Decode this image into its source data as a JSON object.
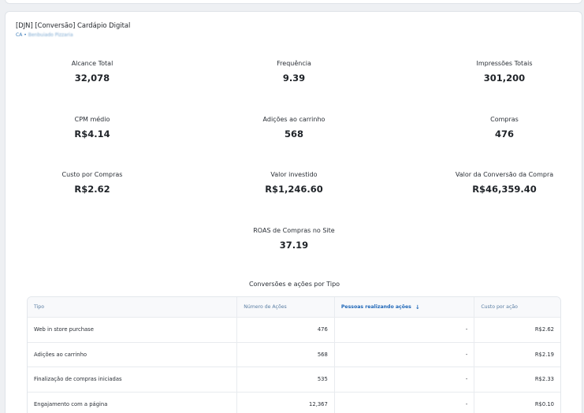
{
  "campaign": {
    "title": "[DJN] [Conversão] Cardápio Digital",
    "account_prefix": "CA •",
    "account_name": "Benbuiado Pizzaria"
  },
  "metrics": {
    "alcance_total": {
      "label": "Alcance Total",
      "value": "32,078"
    },
    "frequencia": {
      "label": "Frequência",
      "value": "9.39"
    },
    "impressoes_totais": {
      "label": "Impressões Totais",
      "value": "301,200"
    },
    "cpm_medio": {
      "label": "CPM médio",
      "value": "R$4.14"
    },
    "adicoes_carrinho": {
      "label": "Adições ao carrinho",
      "value": "568"
    },
    "compras": {
      "label": "Compras",
      "value": "476"
    },
    "custo_por_compras": {
      "label": "Custo por Compras",
      "value": "R$2.62"
    },
    "valor_investido": {
      "label": "Valor investido",
      "value": "R$1,246.60"
    },
    "valor_conversao": {
      "label": "Valor da Conversão da Compra",
      "value": "R$46,359.40"
    },
    "roas": {
      "label": "ROAS de Compras no Site",
      "value": "37.19"
    }
  },
  "conversions": {
    "title": "Conversões e ações por Tipo",
    "columns": [
      "Tipo",
      "Número de Ações",
      "Pessoas realizando ações",
      "Custo por ação"
    ],
    "sort_icon": "arrow-down-icon",
    "rows": [
      [
        "Web in store purchase",
        "476",
        "-",
        "R$2.62"
      ],
      [
        "Adições ao carrinho",
        "568",
        "-",
        "R$2.19"
      ],
      [
        "Finalização de compras iniciadas",
        "535",
        "-",
        "R$2.33"
      ],
      [
        "Engajamento com a página",
        "12,367",
        "-",
        "R$0.10"
      ]
    ]
  },
  "colors": {
    "accent": "#1f67b8",
    "link": "#3b7bb9",
    "background": "#eef0f3"
  }
}
